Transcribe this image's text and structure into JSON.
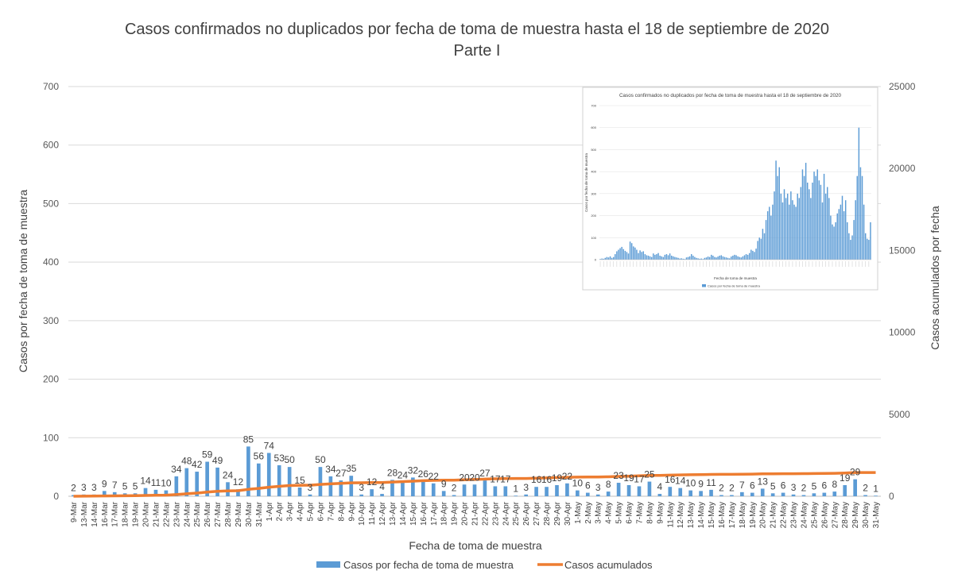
{
  "chart_data": [
    {
      "type": "bar+line",
      "title": "Casos confirmados no duplicados por fecha de toma de muestra hasta el 18 de septiembre de 2020",
      "subtitle": "Parte I",
      "xlabel": "Fecha de toma de muestra",
      "ylabel": "Casos por fecha de toma de muestra",
      "y2label": "Casos acumulados por fecha",
      "ylim": [
        0,
        700
      ],
      "yticks": [
        0,
        100,
        200,
        300,
        400,
        500,
        600,
        700
      ],
      "y2lim": [
        0,
        25000
      ],
      "y2ticks": [
        0,
        5000,
        10000,
        15000,
        20000,
        25000
      ],
      "categories": [
        "9-Mar",
        "13-Mar",
        "14-Mar",
        "16-Mar",
        "17-Mar",
        "18-Mar",
        "19-Mar",
        "20-Mar",
        "21-Mar",
        "22-Mar",
        "23-Mar",
        "24-Mar",
        "25-Mar",
        "26-Mar",
        "27-Mar",
        "28-Mar",
        "29-Mar",
        "30-Mar",
        "31-Mar",
        "1-Apr",
        "2-Apr",
        "3-Apr",
        "4-Apr",
        "5-Apr",
        "6-Apr",
        "7-Apr",
        "8-Apr",
        "9-Apr",
        "10-Apr",
        "11-Apr",
        "12-Apr",
        "13-Apr",
        "14-Apr",
        "15-Apr",
        "16-Apr",
        "17-Apr",
        "18-Apr",
        "19-Apr",
        "20-Apr",
        "21-Apr",
        "22-Apr",
        "23-Apr",
        "24-Apr",
        "25-Apr",
        "26-Apr",
        "27-Apr",
        "28-Apr",
        "29-Apr",
        "30-Apr",
        "1-May",
        "2-May",
        "3-May",
        "4-May",
        "5-May",
        "6-May",
        "7-May",
        "8-May",
        "9-May",
        "11-May",
        "12-May",
        "13-May",
        "14-May",
        "15-May",
        "16-May",
        "17-May",
        "18-May",
        "19-May",
        "20-May",
        "21-May",
        "22-May",
        "23-May",
        "24-May",
        "25-May",
        "26-May",
        "27-May",
        "28-May",
        "29-May",
        "30-May",
        "31-May"
      ],
      "series": [
        {
          "name": "Casos por fecha de toma de muestra",
          "type": "bar",
          "axis": "left",
          "color": "#5b9bd5",
          "values": [
            2,
            3,
            3,
            9,
            7,
            5,
            5,
            14,
            11,
            10,
            34,
            48,
            42,
            59,
            49,
            24,
            12,
            85,
            56,
            74,
            53,
            50,
            15,
            3,
            50,
            34,
            27,
            35,
            3,
            12,
            4,
            28,
            24,
            32,
            26,
            22,
            9,
            2,
            20,
            20,
            27,
            17,
            17,
            1,
            3,
            16,
            16,
            19,
            22,
            10,
            6,
            3,
            8,
            23,
            19,
            17,
            25,
            4,
            16,
            14,
            10,
            9,
            11,
            2,
            2,
            7,
            6,
            13,
            5,
            6,
            3,
            2,
            5,
            6,
            8,
            19,
            29,
            2,
            1
          ]
        },
        {
          "name": "Casos acumulados",
          "type": "line",
          "axis": "right",
          "color": "#ed7d31",
          "values": [
            2,
            5,
            8,
            17,
            24,
            29,
            34,
            48,
            59,
            69,
            103,
            151,
            193,
            252,
            301,
            325,
            337,
            422,
            478,
            552,
            605,
            655,
            670,
            673,
            723,
            757,
            784,
            819,
            822,
            834,
            838,
            866,
            890,
            922,
            948,
            970,
            979,
            981,
            1001,
            1021,
            1048,
            1065,
            1082,
            1083,
            1086,
            1102,
            1118,
            1137,
            1159,
            1169,
            1175,
            1178,
            1186,
            1209,
            1228,
            1245,
            1270,
            1274,
            1290,
            1304,
            1314,
            1323,
            1334,
            1336,
            1338,
            1345,
            1351,
            1364,
            1369,
            1375,
            1378,
            1380,
            1385,
            1391,
            1399,
            1418,
            1447,
            1449,
            1450
          ]
        }
      ],
      "legend": "bottom"
    },
    {
      "type": "bar",
      "title": "Casos confirmados no duplicados por fecha de toma de muestra hasta el 18 de septiembre de 2020",
      "xlabel": "Fecha de toma de muestra",
      "ylabel": "Casos por fecha de toma de muestra",
      "ylim": [
        0,
        700
      ],
      "yticks": [
        0,
        100,
        200,
        300,
        400,
        500,
        600,
        700
      ],
      "legend_entry": "Casos por fecha de toma de muestra",
      "color": "#5b9bd5",
      "values": [
        3,
        5,
        4,
        8,
        12,
        10,
        15,
        8,
        12,
        25,
        38,
        45,
        52,
        58,
        48,
        40,
        35,
        28,
        82,
        75,
        60,
        55,
        45,
        30,
        42,
        35,
        38,
        25,
        20,
        18,
        15,
        12,
        28,
        22,
        25,
        30,
        18,
        15,
        12,
        22,
        25,
        20,
        28,
        18,
        15,
        12,
        10,
        8,
        5,
        6,
        4,
        3,
        10,
        12,
        15,
        25,
        18,
        12,
        8,
        6,
        4,
        5,
        3,
        8,
        10,
        14,
        12,
        22,
        18,
        12,
        10,
        14,
        18,
        20,
        15,
        12,
        10,
        8,
        6,
        14,
        18,
        22,
        20,
        15,
        12,
        10,
        15,
        20,
        25,
        22,
        30,
        45,
        40,
        35,
        50,
        85,
        100,
        95,
        140,
        120,
        180,
        220,
        240,
        200,
        250,
        310,
        450,
        380,
        420,
        300,
        260,
        320,
        280,
        300,
        250,
        310,
        270,
        250,
        240,
        300,
        280,
        330,
        410,
        380,
        440,
        350,
        320,
        280,
        350,
        400,
        380,
        410,
        360,
        340,
        260,
        390,
        300,
        330,
        280,
        200,
        160,
        150,
        170,
        210,
        230,
        250,
        290,
        220,
        270,
        170,
        120,
        90,
        110,
        180,
        270,
        380,
        600,
        420,
        380,
        250,
        120,
        95,
        90,
        170
      ]
    }
  ]
}
